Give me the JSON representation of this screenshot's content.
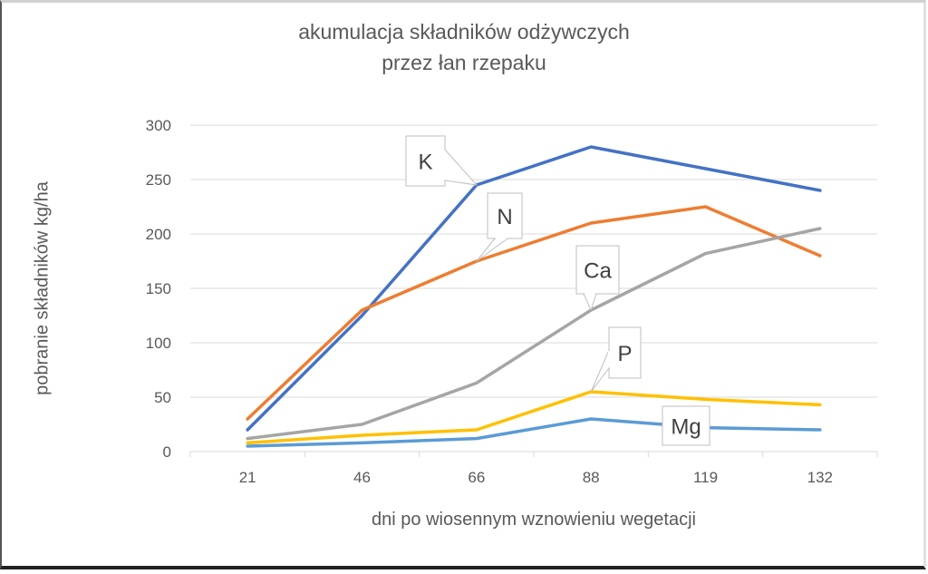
{
  "chart_data": {
    "type": "line",
    "title": "akumulacja składników odżywczych przez łan rzepaku",
    "title_lines": [
      "akumulacja składników odżywczych",
      "przez łan rzepaku"
    ],
    "xlabel": "dni po wiosennym wznowieniu wegetacji",
    "ylabel": "pobranie składników kg/ha",
    "categories": [
      "21",
      "46",
      "66",
      "88",
      "119",
      "132"
    ],
    "ylim": [
      0,
      300
    ],
    "yticks": [
      0,
      50,
      100,
      150,
      200,
      250,
      300
    ],
    "grid": true,
    "legend": "none (data callouts on lines)",
    "series": [
      {
        "name": "K",
        "color": "#4472C4",
        "values": [
          20,
          125,
          245,
          280,
          260,
          240
        ],
        "callout_index": 2
      },
      {
        "name": "N",
        "color": "#ED7D31",
        "values": [
          30,
          130,
          175,
          210,
          225,
          180
        ],
        "callout_index": 2
      },
      {
        "name": "Ca",
        "color": "#A5A5A5",
        "values": [
          12,
          25,
          63,
          130,
          182,
          205
        ],
        "callout_index": 3
      },
      {
        "name": "P",
        "color": "#FFC000",
        "values": [
          8,
          15,
          20,
          55,
          48,
          43
        ],
        "callout_index": 3
      },
      {
        "name": "Mg",
        "color": "#5B9BD5",
        "values": [
          5,
          8,
          12,
          30,
          22,
          20
        ],
        "callout_index": 4
      }
    ]
  }
}
